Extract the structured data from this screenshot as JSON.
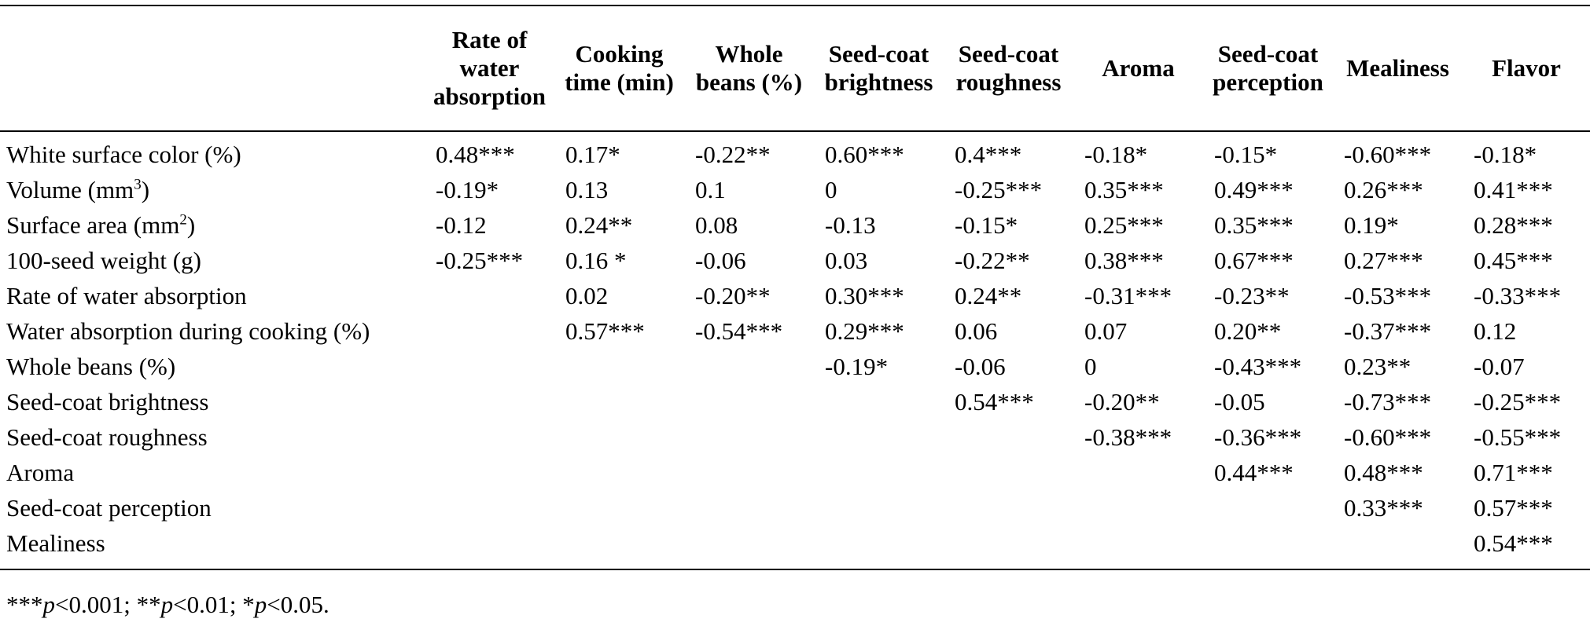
{
  "table": {
    "columns": [
      "Rate of\nwater\nabsorption",
      "Cooking\ntime (min)",
      "Whole\nbeans (%)",
      "Seed-coat\nbrightness",
      "Seed-coat\nroughness",
      "Aroma",
      "Seed-coat\nperception",
      "Mealiness",
      "Flavor"
    ],
    "rows": [
      {
        "label": "White surface color (%)",
        "label_sup": "",
        "label_end": "",
        "values": [
          "0.48***",
          "0.17*",
          "-0.22**",
          "0.60***",
          "0.4***",
          "-0.18*",
          "-0.15*",
          "-0.60***",
          "-0.18*"
        ]
      },
      {
        "label": "Volume (mm",
        "label_sup": "3",
        "label_end": ")",
        "values": [
          "-0.19*",
          "0.13",
          "0.1",
          "0",
          "-0.25***",
          "0.35***",
          "0.49***",
          "0.26***",
          "0.41***"
        ]
      },
      {
        "label": "Surface area (mm",
        "label_sup": "2",
        "label_end": ")",
        "values": [
          "-0.12",
          "0.24**",
          "0.08",
          "-0.13",
          "-0.15*",
          "0.25***",
          "0.35***",
          "0.19*",
          "0.28***"
        ]
      },
      {
        "label": "100-seed weight (g)",
        "label_sup": "",
        "label_end": "",
        "values": [
          "-0.25***",
          "0.16 *",
          "-0.06",
          "0.03",
          "-0.22**",
          "0.38***",
          "0.67***",
          "0.27***",
          "0.45***"
        ]
      },
      {
        "label": "Rate of water absorption",
        "label_sup": "",
        "label_end": "",
        "values": [
          "",
          "0.02",
          "-0.20**",
          "0.30***",
          "0.24**",
          "-0.31***",
          "-0.23**",
          "-0.53***",
          "-0.33***"
        ]
      },
      {
        "label": "Water absorption during cooking (%)",
        "label_sup": "",
        "label_end": "",
        "values": [
          "",
          "0.57***",
          "-0.54***",
          "0.29***",
          "0.06",
          "0.07",
          "0.20**",
          "-0.37***",
          "0.12"
        ]
      },
      {
        "label": "Whole beans (%)",
        "label_sup": "",
        "label_end": "",
        "values": [
          "",
          "",
          "",
          "-0.19*",
          "-0.06",
          "0",
          "-0.43***",
          "0.23**",
          "-0.07"
        ]
      },
      {
        "label": "Seed-coat brightness",
        "label_sup": "",
        "label_end": "",
        "values": [
          "",
          "",
          "",
          "",
          "0.54***",
          "-0.20**",
          "-0.05",
          "-0.73***",
          "-0.25***"
        ]
      },
      {
        "label": "Seed-coat roughness",
        "label_sup": "",
        "label_end": "",
        "values": [
          "",
          "",
          "",
          "",
          "",
          "-0.38***",
          "-0.36***",
          "-0.60***",
          "-0.55***"
        ]
      },
      {
        "label": "Aroma",
        "label_sup": "",
        "label_end": "",
        "values": [
          "",
          "",
          "",
          "",
          "",
          "",
          "0.44***",
          "0.48***",
          "0.71***"
        ]
      },
      {
        "label": "Seed-coat perception",
        "label_sup": "",
        "label_end": "",
        "values": [
          "",
          "",
          "",
          "",
          "",
          "",
          "",
          "0.33***",
          "0.57***"
        ]
      },
      {
        "label": "Mealiness",
        "label_sup": "",
        "label_end": "",
        "values": [
          "",
          "",
          "",
          "",
          "",
          "",
          "",
          "",
          "0.54***"
        ]
      }
    ]
  },
  "footnote": {
    "p1_stars": "***",
    "p1_rest": "<0.001; ",
    "p2_stars": "**",
    "p2_rest": "<0.01; ",
    "p3_stars": "*",
    "p3_rest": "<0.05.",
    "p_symbol": "p"
  }
}
